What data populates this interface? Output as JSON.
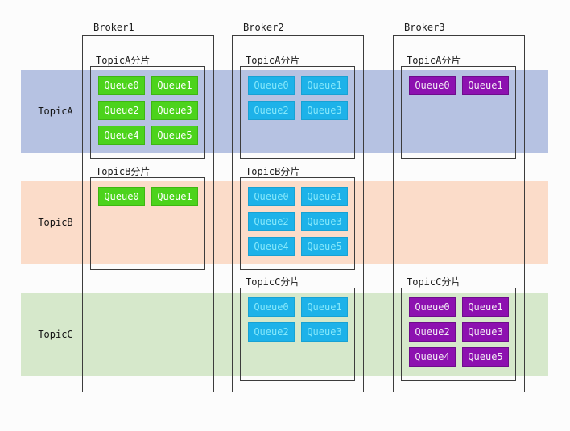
{
  "diagram": {
    "title_implied": "Topic sharding across brokers",
    "topics": [
      {
        "label": "TopicA",
        "band_color": "#b6c2e2"
      },
      {
        "label": "TopicB",
        "band_color": "#fbdcc9"
      },
      {
        "label": "TopicC",
        "band_color": "#d6e8cb"
      }
    ],
    "queue_colors": {
      "broker1_queues": "#4cd31c",
      "broker2_queues": "#1db2e9",
      "broker3_queues": "#8d11b0"
    },
    "brokers": [
      {
        "name": "Broker1",
        "shards": [
          {
            "title": "TopicA分片",
            "queues": [
              "Queue0",
              "Queue1",
              "Queue2",
              "Queue3",
              "Queue4",
              "Queue5"
            ]
          },
          {
            "title": "TopicB分片",
            "queues": [
              "Queue0",
              "Queue1"
            ]
          }
        ]
      },
      {
        "name": "Broker2",
        "shards": [
          {
            "title": "TopicA分片",
            "queues": [
              "Queue0",
              "Queue1",
              "Queue2",
              "Queue3"
            ]
          },
          {
            "title": "TopicB分片",
            "queues": [
              "Queue0",
              "Queue1",
              "Queue2",
              "Queue3",
              "Queue4",
              "Queue5"
            ]
          },
          {
            "title": "TopicC分片",
            "queues": [
              "Queue0",
              "Queue1",
              "Queue2",
              "Queue3"
            ]
          }
        ]
      },
      {
        "name": "Broker3",
        "shards": [
          {
            "title": "TopicA分片",
            "queues": [
              "Queue0",
              "Queue1"
            ]
          },
          {
            "title": "TopicC分片",
            "queues": [
              "Queue0",
              "Queue1",
              "Queue2",
              "Queue3",
              "Queue4",
              "Queue5"
            ]
          }
        ]
      }
    ]
  }
}
